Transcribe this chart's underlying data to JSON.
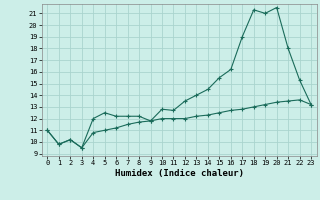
{
  "xlabel": "Humidex (Indice chaleur)",
  "background_color": "#cceee8",
  "grid_color": "#aad4ce",
  "line_color": "#1a6b5a",
  "xlim": [
    -0.5,
    23.5
  ],
  "ylim": [
    8.8,
    21.8
  ],
  "yticks": [
    9,
    10,
    11,
    12,
    13,
    14,
    15,
    16,
    17,
    18,
    19,
    20,
    21
  ],
  "xticks": [
    0,
    1,
    2,
    3,
    4,
    5,
    6,
    7,
    8,
    9,
    10,
    11,
    12,
    13,
    14,
    15,
    16,
    17,
    18,
    19,
    20,
    21,
    22,
    23
  ],
  "line1_x": [
    0,
    1,
    2,
    3,
    4,
    5,
    6,
    7,
    8,
    9,
    10,
    11,
    12,
    13,
    14,
    15,
    16,
    17,
    18,
    19,
    20,
    21,
    22,
    23
  ],
  "line1_y": [
    11.0,
    9.8,
    10.2,
    9.5,
    12.0,
    12.5,
    12.2,
    12.2,
    12.2,
    11.8,
    12.8,
    12.7,
    13.5,
    14.0,
    14.5,
    15.5,
    16.2,
    19.0,
    21.3,
    21.0,
    21.5,
    18.0,
    15.3,
    13.2
  ],
  "line2_x": [
    0,
    1,
    2,
    3,
    4,
    5,
    6,
    7,
    8,
    9,
    10,
    11,
    12,
    13,
    14,
    15,
    16,
    17,
    18,
    19,
    20,
    21,
    22,
    23
  ],
  "line2_y": [
    11.0,
    9.8,
    10.2,
    9.5,
    10.8,
    11.0,
    11.2,
    11.5,
    11.7,
    11.8,
    12.0,
    12.0,
    12.0,
    12.2,
    12.3,
    12.5,
    12.7,
    12.8,
    13.0,
    13.2,
    13.4,
    13.5,
    13.6,
    13.2
  ]
}
